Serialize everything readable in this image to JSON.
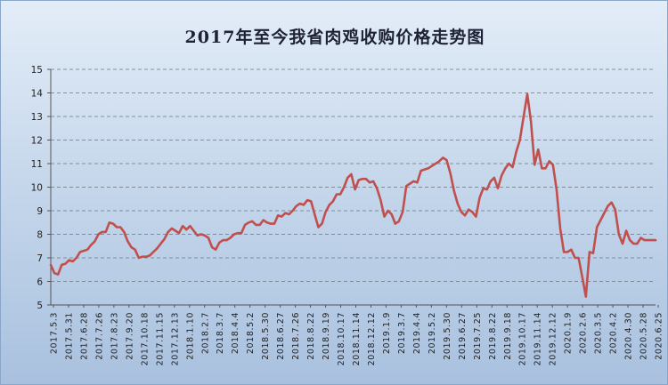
{
  "chart_data": {
    "type": "line",
    "title": "2017年至今我省肉鸡收购价格走势图",
    "xlabel": "",
    "ylabel": "",
    "ylim": [
      5,
      15
    ],
    "yticks": [
      "5",
      "6",
      "7",
      "8",
      "9",
      "10",
      "11",
      "12",
      "13",
      "14",
      "15"
    ],
    "grid": "horizontal dashed",
    "line_color": "#c0504d",
    "x_tick_labels": [
      "2017.5.3",
      "2017.5.31",
      "2017.6.28",
      "2017.7.26",
      "2017.8.23",
      "2017.9.20",
      "2017.10.18",
      "2017.11.15",
      "2017.12.13",
      "2018.1.10",
      "2018.2.7",
      "2018.3.7",
      "2018.4.4",
      "2018.5.2",
      "2018.5.30",
      "2018.6.27",
      "2018.7.26",
      "2018.8.22",
      "2018.9.19",
      "2018.10.17",
      "2018.11.14",
      "2018.12.12",
      "2019.1.9",
      "2019.3.7",
      "2019.4.4",
      "2019.5.2",
      "2019.5.30",
      "2019.6.27",
      "2019.7.25",
      "2019.8.22",
      "2019.9.18",
      "2019.10.17",
      "2019.11.14",
      "2019.12.12",
      "2020.1.9",
      "2020.2.6",
      "2020.3.5",
      "2020.4.2",
      "2020.4.30",
      "2020.5.28",
      "2020.6.25"
    ],
    "values": [
      6.7,
      6.35,
      6.3,
      6.7,
      6.75,
      6.9,
      6.85,
      7.0,
      7.25,
      7.3,
      7.35,
      7.55,
      7.7,
      8.0,
      8.1,
      8.1,
      8.5,
      8.45,
      8.3,
      8.3,
      8.1,
      7.7,
      7.45,
      7.35,
      7.0,
      7.05,
      7.05,
      7.1,
      7.25,
      7.4,
      7.6,
      7.8,
      8.1,
      8.25,
      8.15,
      8.05,
      8.35,
      8.2,
      8.35,
      8.15,
      7.95,
      8.0,
      7.95,
      7.85,
      7.45,
      7.35,
      7.65,
      7.75,
      7.75,
      7.85,
      8.0,
      8.05,
      8.05,
      8.4,
      8.5,
      8.55,
      8.4,
      8.4,
      8.6,
      8.5,
      8.45,
      8.45,
      8.8,
      8.75,
      8.9,
      8.85,
      9.0,
      9.2,
      9.3,
      9.25,
      9.45,
      9.4,
      8.85,
      8.3,
      8.45,
      8.95,
      9.25,
      9.4,
      9.7,
      9.7,
      10.0,
      10.4,
      10.55,
      9.9,
      10.3,
      10.35,
      10.35,
      10.2,
      10.25,
      9.95,
      9.45,
      8.75,
      9.0,
      8.85,
      8.45,
      8.55,
      8.95,
      10.05,
      10.15,
      10.25,
      10.2,
      10.7,
      10.75,
      10.8,
      10.9,
      11.0,
      11.1,
      11.25,
      11.15,
      10.6,
      9.85,
      9.3,
      8.95,
      8.8,
      9.05,
      8.95,
      8.75,
      9.55,
      9.95,
      9.9,
      10.25,
      10.4,
      9.95,
      10.5,
      10.8,
      11.0,
      10.85,
      11.5,
      12.0,
      13.0,
      13.95,
      12.8,
      10.95,
      11.6,
      10.8,
      10.8,
      11.1,
      10.95,
      9.9,
      8.25,
      7.25,
      7.25,
      7.35,
      7.0,
      7.0,
      6.2,
      5.35,
      7.25,
      7.2,
      8.3,
      8.6,
      8.9,
      9.2,
      9.35,
      9.05,
      8.0,
      7.6,
      8.15,
      7.75,
      7.6,
      7.6,
      7.85,
      7.75,
      7.75,
      7.75,
      7.75
    ]
  }
}
